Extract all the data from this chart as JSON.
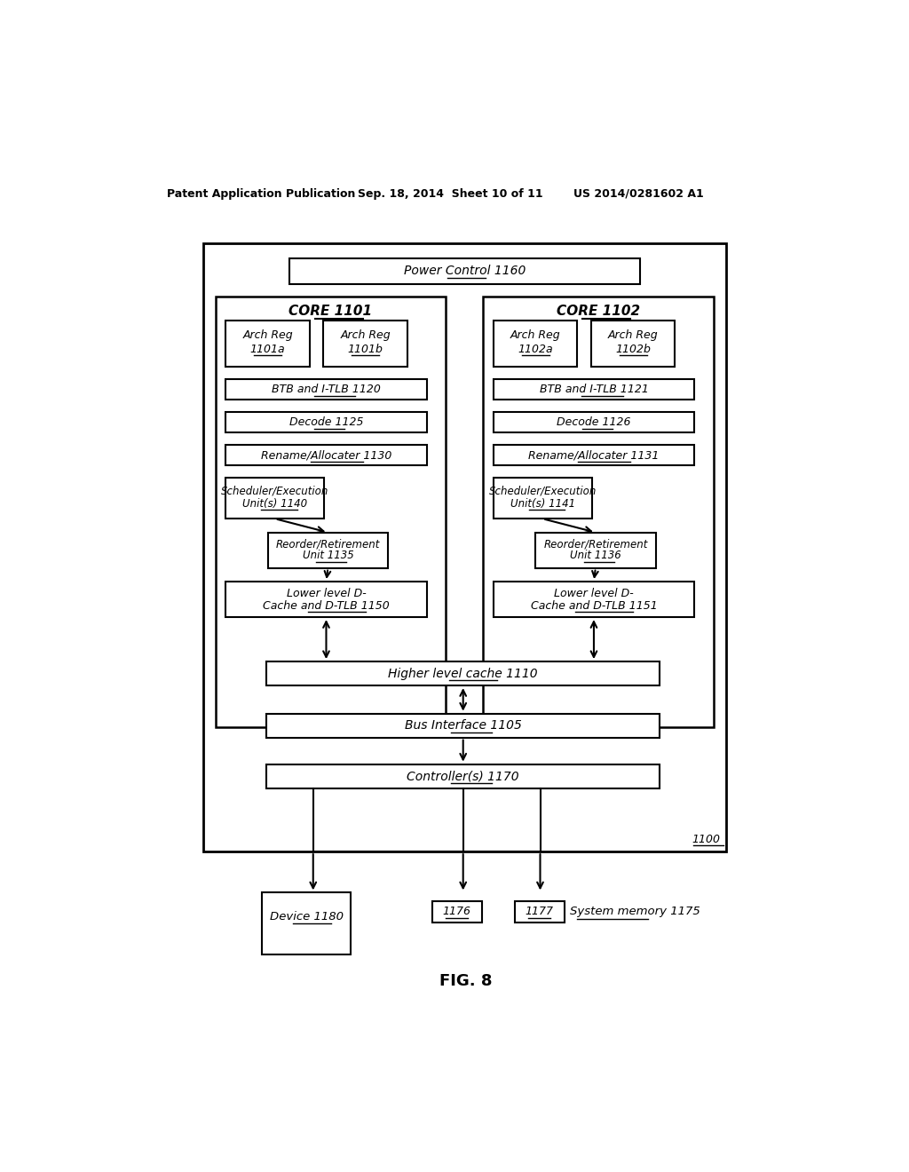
{
  "header_left": "Patent Application Publication",
  "header_mid": "Sep. 18, 2014  Sheet 10 of 11",
  "header_right": "US 2014/0281602 A1",
  "fig_label": "FIG. 8",
  "bg_color": "#ffffff",
  "box_color": "#000000",
  "text_color": "#000000"
}
